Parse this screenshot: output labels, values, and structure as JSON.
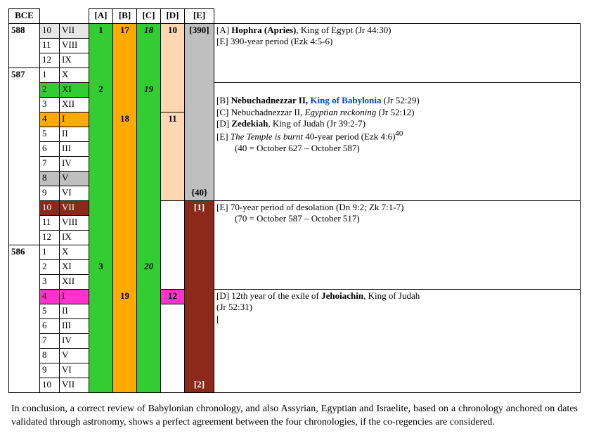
{
  "header": {
    "bce": "BCE",
    "cols": [
      "[A]",
      "[B]",
      "[C]",
      "[D]",
      "[E]"
    ]
  },
  "colors": {
    "green": "#33cc33",
    "orange": "#ffaa00",
    "peach": "#ffd7b0",
    "grey": "#bfbfbf",
    "maroon": "#8b2a1a",
    "magenta": "#ff33cc",
    "white": "#ffffff",
    "ltgrey": "#e6e6e6"
  },
  "years": [
    {
      "bce": "588",
      "rows": [
        {
          "m": "10",
          "r": "VII",
          "month_bg": "ltgrey",
          "A": "1",
          "B": "17",
          "C": "18",
          "C_it": true,
          "D": "10",
          "E": "[390]",
          "E_bg": "grey",
          "D_bg": "peach"
        },
        {
          "m": "11",
          "r": "VIII"
        },
        {
          "m": "12",
          "r": "IX"
        }
      ]
    },
    {
      "bce": "587",
      "rows": [
        {
          "m": "1",
          "r": "X"
        },
        {
          "m": "2",
          "r": "XI",
          "month_bg": "green",
          "A": "2",
          "C": "19",
          "C_it": true
        },
        {
          "m": "3",
          "r": "XII"
        },
        {
          "m": "4",
          "r": "I",
          "month_bg": "orange",
          "B": "18",
          "D": "11",
          "D_bg": "peach"
        },
        {
          "m": "5",
          "r": "II"
        },
        {
          "m": "6",
          "r": "III"
        },
        {
          "m": "7",
          "r": "IV"
        },
        {
          "m": "8",
          "r": "V",
          "month_bg": "grey"
        },
        {
          "m": "9",
          "r": "VI",
          "E": "{40}",
          "E_bg": "grey"
        },
        {
          "m": "10",
          "r": "VII",
          "month_bg": "maroon",
          "E": "[1]",
          "E_bg": "maroon",
          "D_bg": "white"
        },
        {
          "m": "11",
          "r": "VIII"
        },
        {
          "m": "12",
          "r": "IX"
        }
      ]
    },
    {
      "bce": "586",
      "rows": [
        {
          "m": "1",
          "r": "X"
        },
        {
          "m": "2",
          "r": "XI",
          "A": "3",
          "C": "20",
          "C_it": true
        },
        {
          "m": "3",
          "r": "XII"
        },
        {
          "m": "4",
          "r": "I",
          "month_bg": "magenta",
          "B": "19",
          "D": "12",
          "D_bg": "magenta"
        },
        {
          "m": "5",
          "r": "II"
        },
        {
          "m": "6",
          "r": "III"
        },
        {
          "m": "7",
          "r": "IV"
        },
        {
          "m": "8",
          "r": "V"
        },
        {
          "m": "9",
          "r": "VI"
        },
        {
          "m": "10",
          "r": "VII",
          "E": "[2]",
          "E_bg": "maroon"
        }
      ]
    }
  ],
  "notes": {
    "block1": {
      "l1_label": "[A] ",
      "l1_bold": "Hophra (Apries)",
      "l1_rest": ", King of Egypt (Jr 44:30)",
      "l2": "[E] 390-year period (Ezk 4:5-6)"
    },
    "block2": {
      "l1_label": "[B] ",
      "l1_bold": "Nebuchadnezzar II, ",
      "l1_link": "King of Babylonia",
      "l1_rest": " (Jr 52:29)",
      "l2": "[C] Nebuchadnezzar II, ",
      "l2_it": "Egyptian reckoning",
      "l2_rest": " (Jr 52:12)",
      "l3_label": "[D] ",
      "l3_bold": "Zedekiah",
      "l3_rest": ", King of Judah (Jr 39:2-7)",
      "l4": "[E] ",
      "l4_it": "The Temple is burnt",
      "l4_rest": " 40-year period (Ezk 4:6)",
      "l4_sup": "40",
      "l5": "        (40 = October 627 – October 587)"
    },
    "block3": {
      "l1": "[E] 70-year period of desolation (Dn 9:2; Zk 7:1-7)",
      "l2": "        (70 = October 587 – October 517)"
    },
    "block4": {
      "l1": "[D] 12th year of the exile of ",
      "l1_bold": "Jehoiachin",
      "l1_rest": ", King of Judah",
      "l2": "(Jr 52:31)",
      "l3": "["
    }
  },
  "conclusion": "In conclusion, a correct review of Babylonian chronology, and also Assyrian, Egyptian and Israelite, based on a chronology anchored on dates validated through astronomy, shows a perfect agreement between the four chronologies, if the co-regencies are considered."
}
